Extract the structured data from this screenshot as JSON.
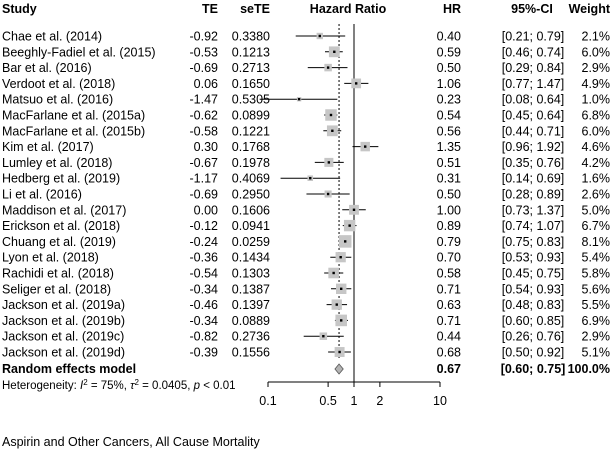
{
  "chart_data": {
    "type": "forest",
    "headers": {
      "study": "Study",
      "te": "TE",
      "sete": "seTE",
      "ratio": "Hazard Ratio",
      "hr": "HR",
      "ci": "95%-CI",
      "weight": "Weight"
    },
    "x_scale": "log",
    "xlim": [
      0.1,
      10
    ],
    "x_ticks": [
      {
        "value": 0.1,
        "label": "0.1"
      },
      {
        "value": 0.5,
        "label": "0.5"
      },
      {
        "value": 1,
        "label": "1"
      },
      {
        "value": 2,
        "label": "2"
      },
      {
        "value": 10,
        "label": "10"
      }
    ],
    "null_line": 1,
    "pooled_line": 0.67,
    "studies": [
      {
        "study": "Chae et al. (2014)",
        "te": "-0.92",
        "sete": "0.3380",
        "hr": 0.4,
        "lo": 0.21,
        "hi": 0.79,
        "hr_text": "0.40",
        "ci_text": "[0.21; 0.79]",
        "weight": 2.1,
        "weight_text": "2.1%"
      },
      {
        "study": "Beeghly-Fadiel et al. (2015)",
        "te": "-0.53",
        "sete": "0.1213",
        "hr": 0.59,
        "lo": 0.46,
        "hi": 0.74,
        "hr_text": "0.59",
        "ci_text": "[0.46; 0.74]",
        "weight": 6.0,
        "weight_text": "6.0%"
      },
      {
        "study": "Bar et al. (2016)",
        "te": "-0.69",
        "sete": "0.2713",
        "hr": 0.5,
        "lo": 0.29,
        "hi": 0.84,
        "hr_text": "0.50",
        "ci_text": "[0.29; 0.84]",
        "weight": 2.9,
        "weight_text": "2.9%"
      },
      {
        "study": "Verdoot et al. (2018)",
        "te": "0.06",
        "sete": "0.1650",
        "hr": 1.06,
        "lo": 0.77,
        "hi": 1.47,
        "hr_text": "1.06",
        "ci_text": "[0.77; 1.47]",
        "weight": 4.9,
        "weight_text": "4.9%"
      },
      {
        "study": "Matsuo et al. (2016)",
        "te": "-1.47",
        "sete": "0.5305",
        "hr": 0.23,
        "lo": 0.08,
        "hi": 0.64,
        "hr_text": "0.23",
        "ci_text": "[0.08; 0.64]",
        "weight": 1.0,
        "weight_text": "1.0%"
      },
      {
        "study": "MacFarlane et al. (2015a)",
        "te": "-0.62",
        "sete": "0.0899",
        "hr": 0.54,
        "lo": 0.45,
        "hi": 0.64,
        "hr_text": "0.54",
        "ci_text": "[0.45; 0.64]",
        "weight": 6.8,
        "weight_text": "6.8%"
      },
      {
        "study": "MacFarlane et al. (2015b)",
        "te": "-0.58",
        "sete": "0.1221",
        "hr": 0.56,
        "lo": 0.44,
        "hi": 0.71,
        "hr_text": "0.56",
        "ci_text": "[0.44; 0.71]",
        "weight": 6.0,
        "weight_text": "6.0%"
      },
      {
        "study": "Kim et al. (2017)",
        "te": "0.30",
        "sete": "0.1768",
        "hr": 1.35,
        "lo": 0.96,
        "hi": 1.92,
        "hr_text": "1.35",
        "ci_text": "[0.96; 1.92]",
        "weight": 4.6,
        "weight_text": "4.6%"
      },
      {
        "study": "Lumley et al. (2018)",
        "te": "-0.67",
        "sete": "0.1978",
        "hr": 0.51,
        "lo": 0.35,
        "hi": 0.76,
        "hr_text": "0.51",
        "ci_text": "[0.35; 0.76]",
        "weight": 4.2,
        "weight_text": "4.2%"
      },
      {
        "study": "Hedberg et al. (2019)",
        "te": "-1.17",
        "sete": "0.4069",
        "hr": 0.31,
        "lo": 0.14,
        "hi": 0.69,
        "hr_text": "0.31",
        "ci_text": "[0.14; 0.69]",
        "weight": 1.6,
        "weight_text": "1.6%"
      },
      {
        "study": "Li et al. (2016)",
        "te": "-0.69",
        "sete": "0.2950",
        "hr": 0.5,
        "lo": 0.28,
        "hi": 0.89,
        "hr_text": "0.50",
        "ci_text": "[0.28; 0.89]",
        "weight": 2.6,
        "weight_text": "2.6%"
      },
      {
        "study": "Maddison et al. (2017)",
        "te": "0.00",
        "sete": "0.1606",
        "hr": 1.0,
        "lo": 0.73,
        "hi": 1.37,
        "hr_text": "1.00",
        "ci_text": "[0.73; 1.37]",
        "weight": 5.0,
        "weight_text": "5.0%"
      },
      {
        "study": "Erickson et al. (2018)",
        "te": "-0.12",
        "sete": "0.0941",
        "hr": 0.89,
        "lo": 0.74,
        "hi": 1.07,
        "hr_text": "0.89",
        "ci_text": "[0.74; 1.07]",
        "weight": 6.7,
        "weight_text": "6.7%"
      },
      {
        "study": "Chuang et al. (2019)",
        "te": "-0.24",
        "sete": "0.0259",
        "hr": 0.79,
        "lo": 0.75,
        "hi": 0.83,
        "hr_text": "0.79",
        "ci_text": "[0.75; 0.83]",
        "weight": 8.1,
        "weight_text": "8.1%"
      },
      {
        "study": "Lyon et al. (2018)",
        "te": "-0.36",
        "sete": "0.1434",
        "hr": 0.7,
        "lo": 0.53,
        "hi": 0.93,
        "hr_text": "0.70",
        "ci_text": "[0.53; 0.93]",
        "weight": 5.4,
        "weight_text": "5.4%"
      },
      {
        "study": "Rachidi et al. (2018)",
        "te": "-0.54",
        "sete": "0.1303",
        "hr": 0.58,
        "lo": 0.45,
        "hi": 0.75,
        "hr_text": "0.58",
        "ci_text": "[0.45; 0.75]",
        "weight": 5.8,
        "weight_text": "5.8%"
      },
      {
        "study": "Seliger et al. (2018)",
        "te": "-0.34",
        "sete": "0.1387",
        "hr": 0.71,
        "lo": 0.54,
        "hi": 0.93,
        "hr_text": "0.71",
        "ci_text": "[0.54; 0.93]",
        "weight": 5.6,
        "weight_text": "5.6%"
      },
      {
        "study": "Jackson et al. (2019a)",
        "te": "-0.46",
        "sete": "0.1397",
        "hr": 0.63,
        "lo": 0.48,
        "hi": 0.83,
        "hr_text": "0.63",
        "ci_text": "[0.48; 0.83]",
        "weight": 5.5,
        "weight_text": "5.5%"
      },
      {
        "study": "Jackson et al. (2019b)",
        "te": "-0.34",
        "sete": "0.0889",
        "hr": 0.71,
        "lo": 0.6,
        "hi": 0.85,
        "hr_text": "0.71",
        "ci_text": "[0.60; 0.85]",
        "weight": 6.9,
        "weight_text": "6.9%"
      },
      {
        "study": "Jackson et al. (2019c)",
        "te": "-0.82",
        "sete": "0.2736",
        "hr": 0.44,
        "lo": 0.26,
        "hi": 0.76,
        "hr_text": "0.44",
        "ci_text": "[0.26; 0.76]",
        "weight": 2.9,
        "weight_text": "2.9%"
      },
      {
        "study": "Jackson et al. (2019d)",
        "te": "-0.39",
        "sete": "0.1556",
        "hr": 0.68,
        "lo": 0.5,
        "hi": 0.92,
        "hr_text": "0.68",
        "ci_text": "[0.50; 0.92]",
        "weight": 5.1,
        "weight_text": "5.1%"
      }
    ],
    "summary": {
      "label": "Random effects model",
      "hr": 0.67,
      "lo": 0.6,
      "hi": 0.75,
      "hr_text": "0.67",
      "ci_text": "[0.60; 0.75]",
      "weight_text": "100.0%"
    },
    "heterogeneity": {
      "prefix": "Heterogeneity: ",
      "i2_symbol": "I",
      "i2_rest": " = 75%, ",
      "tau2_symbol": "τ",
      "tau2_rest": " = 0.0405, ",
      "p_symbol": "p",
      "p_rest": " < 0.01"
    },
    "caption": "Aspirin and Other Cancers, All Cause Mortality",
    "colors": {
      "box": "#c6c6c6",
      "diamond": "#b3b3b3",
      "line": "#000000"
    }
  }
}
